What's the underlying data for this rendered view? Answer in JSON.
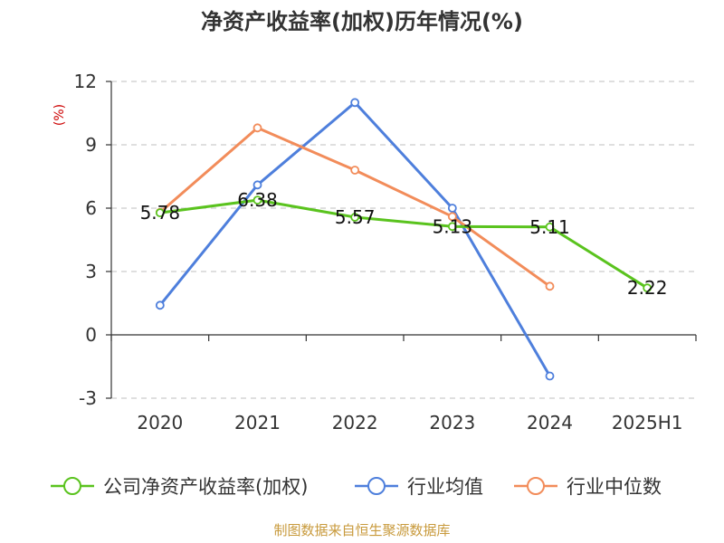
{
  "chart_data": {
    "type": "line",
    "title": "净资产收益率(加权)历年情况(%)",
    "ylabel": "(%)",
    "categories": [
      "2020",
      "2021",
      "2022",
      "2023",
      "2024",
      "2025H1"
    ],
    "ylim": [
      -3,
      12
    ],
    "yticks": [
      "12",
      "9",
      "6",
      "3",
      "0",
      "-3"
    ],
    "grid": true,
    "legend_position": "bottom",
    "series": [
      {
        "name": "公司净资产收益率(加权)",
        "color": "#5ac31e",
        "values": [
          5.78,
          6.38,
          5.57,
          5.13,
          5.11,
          2.22
        ],
        "labels": [
          "5.78",
          "6.38",
          "5.57",
          "5.13",
          "5.11",
          "2.22"
        ]
      },
      {
        "name": "行业均值",
        "color": "#4e7fdc",
        "values": [
          1.4,
          7.1,
          11.0,
          6.0,
          -1.95,
          null
        ]
      },
      {
        "name": "行业中位数",
        "color": "#f28c5a",
        "values": [
          5.8,
          9.8,
          7.8,
          5.6,
          2.3,
          null
        ]
      }
    ]
  },
  "footer": {
    "source": "制图数据来自恒生聚源数据库"
  }
}
